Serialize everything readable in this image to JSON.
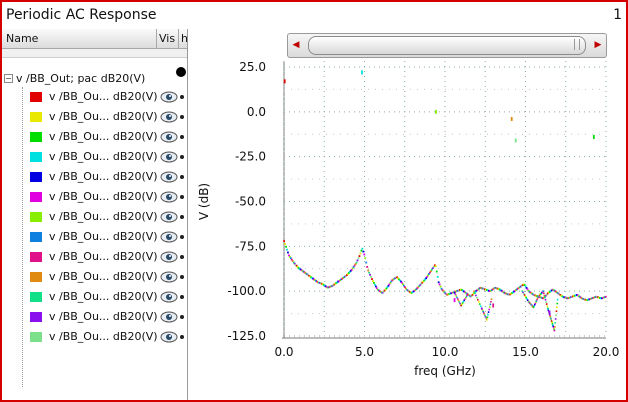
{
  "window": {
    "title": "Periodic AC Response",
    "page_number": "1"
  },
  "tree": {
    "headers": {
      "name": "Name",
      "vis": "Vis",
      "h": "h"
    },
    "root_label": "v /BB_Out; pac dB20(V)",
    "items": [
      {
        "label": "v /BB_Ou... dB20(V)",
        "color": "#e00000"
      },
      {
        "label": "v /BB_Ou... dB20(V)",
        "color": "#e8e800"
      },
      {
        "label": "v /BB_Ou... dB20(V)",
        "color": "#00dd00"
      },
      {
        "label": "v /BB_Ou... dB20(V)",
        "color": "#00e0e0"
      },
      {
        "label": "v /BB_Ou... dB20(V)",
        "color": "#0000e0"
      },
      {
        "label": "v /BB_Ou... dB20(V)",
        "color": "#e000e0"
      },
      {
        "label": "v /BB_Ou... dB20(V)",
        "color": "#88ee00"
      },
      {
        "label": "v /BB_Ou... dB20(V)",
        "color": "#1080e0"
      },
      {
        "label": "v /BB_Ou... dB20(V)",
        "color": "#e0108a"
      },
      {
        "label": "v /BB_Ou... dB20(V)",
        "color": "#e08a10"
      },
      {
        "label": "v /BB_Ou... dB20(V)",
        "color": "#10e088"
      },
      {
        "label": "v /BB_Ou... dB20(V)",
        "color": "#8a10ee"
      },
      {
        "label": "v /BB_Ou... dB20(V)",
        "color": "#7ce08a"
      }
    ]
  },
  "chart_data": {
    "type": "scatter",
    "title": "",
    "xlabel": "freq (GHz)",
    "ylabel": "V (dB)",
    "xlim": [
      0,
      20
    ],
    "ylim": [
      -125,
      25
    ],
    "xticks": [
      "0.0",
      "5.0",
      "10.0",
      "15.0",
      "20.0"
    ],
    "yticks": [
      "25.0",
      "0.0",
      "-25.0",
      "-50.0",
      "-75.0",
      "-100.0",
      "-125.0"
    ],
    "grid": true,
    "legend": "none",
    "series_colors": [
      "#e00000",
      "#e8e800",
      "#00dd00",
      "#00e0e0",
      "#0000e0",
      "#e000e0",
      "#88ee00",
      "#1080e0",
      "#e0108a",
      "#e08a10",
      "#10e088",
      "#8a10ee",
      "#7ce08a"
    ],
    "trace": {
      "x": [
        0.0,
        0.3,
        0.6,
        0.9,
        1.2,
        1.5,
        1.8,
        2.1,
        2.4,
        2.7,
        3.0,
        3.3,
        3.6,
        3.9,
        4.2,
        4.5,
        4.7,
        4.85,
        5.0,
        5.2,
        5.5,
        5.8,
        6.1,
        6.4,
        6.7,
        7.0,
        7.3,
        7.6,
        7.9,
        8.2,
        8.5,
        8.8,
        9.1,
        9.4,
        9.6,
        9.8,
        10.1,
        10.4,
        10.7,
        11.0,
        11.3,
        11.6,
        11.9,
        12.2,
        12.5,
        12.8,
        13.1,
        13.4,
        13.7,
        14.0,
        14.3,
        14.6,
        14.9,
        15.2,
        15.5,
        15.8,
        16.1,
        16.4,
        16.7,
        17.0,
        17.3,
        17.6,
        17.9,
        18.2,
        18.5,
        18.8,
        19.1,
        19.4,
        19.7,
        20.0
      ],
      "y": [
        -72,
        -80,
        -84,
        -87,
        -89,
        -91,
        -93,
        -95,
        -96,
        -98,
        -97,
        -95,
        -93,
        -91,
        -88,
        -84,
        -80,
        -76,
        -80,
        -88,
        -94,
        -99,
        -101,
        -98,
        -94,
        -92,
        -95,
        -99,
        -101,
        -99,
        -96,
        -93,
        -89,
        -85,
        -95,
        -99,
        -102,
        -101,
        -100,
        -99,
        -101,
        -103,
        -100,
        -98,
        -99,
        -100,
        -98,
        -99,
        -101,
        -102,
        -100,
        -98,
        -96,
        -100,
        -102,
        -103,
        -104,
        -101,
        -99,
        -101,
        -103,
        -104,
        -103,
        -102,
        -104,
        -105,
        -104,
        -103,
        -104,
        -103
      ]
    },
    "dips": [
      {
        "x": [
          11.8,
          12.3,
          12.6,
          12.9
        ],
        "y": [
          -100,
          -110,
          -116,
          -104
        ]
      },
      {
        "x": [
          14.8,
          15.2,
          15.5,
          15.8,
          16.1,
          16.4,
          16.6,
          16.8,
          17.0
        ],
        "y": [
          -100,
          -106,
          -109,
          -103,
          -100,
          -110,
          -116,
          -122,
          -104
        ]
      },
      {
        "x": [
          10.6,
          11.0,
          11.4
        ],
        "y": [
          -101,
          -108,
          -102
        ]
      }
    ],
    "outliers": {
      "x": [
        0.05,
        4.85,
        9.45,
        14.15,
        14.4,
        19.25,
        10.6,
        13.0,
        16.5
      ],
      "y": [
        17,
        22,
        0,
        -4,
        -16,
        -14,
        -105,
        -108,
        -112
      ]
    }
  }
}
